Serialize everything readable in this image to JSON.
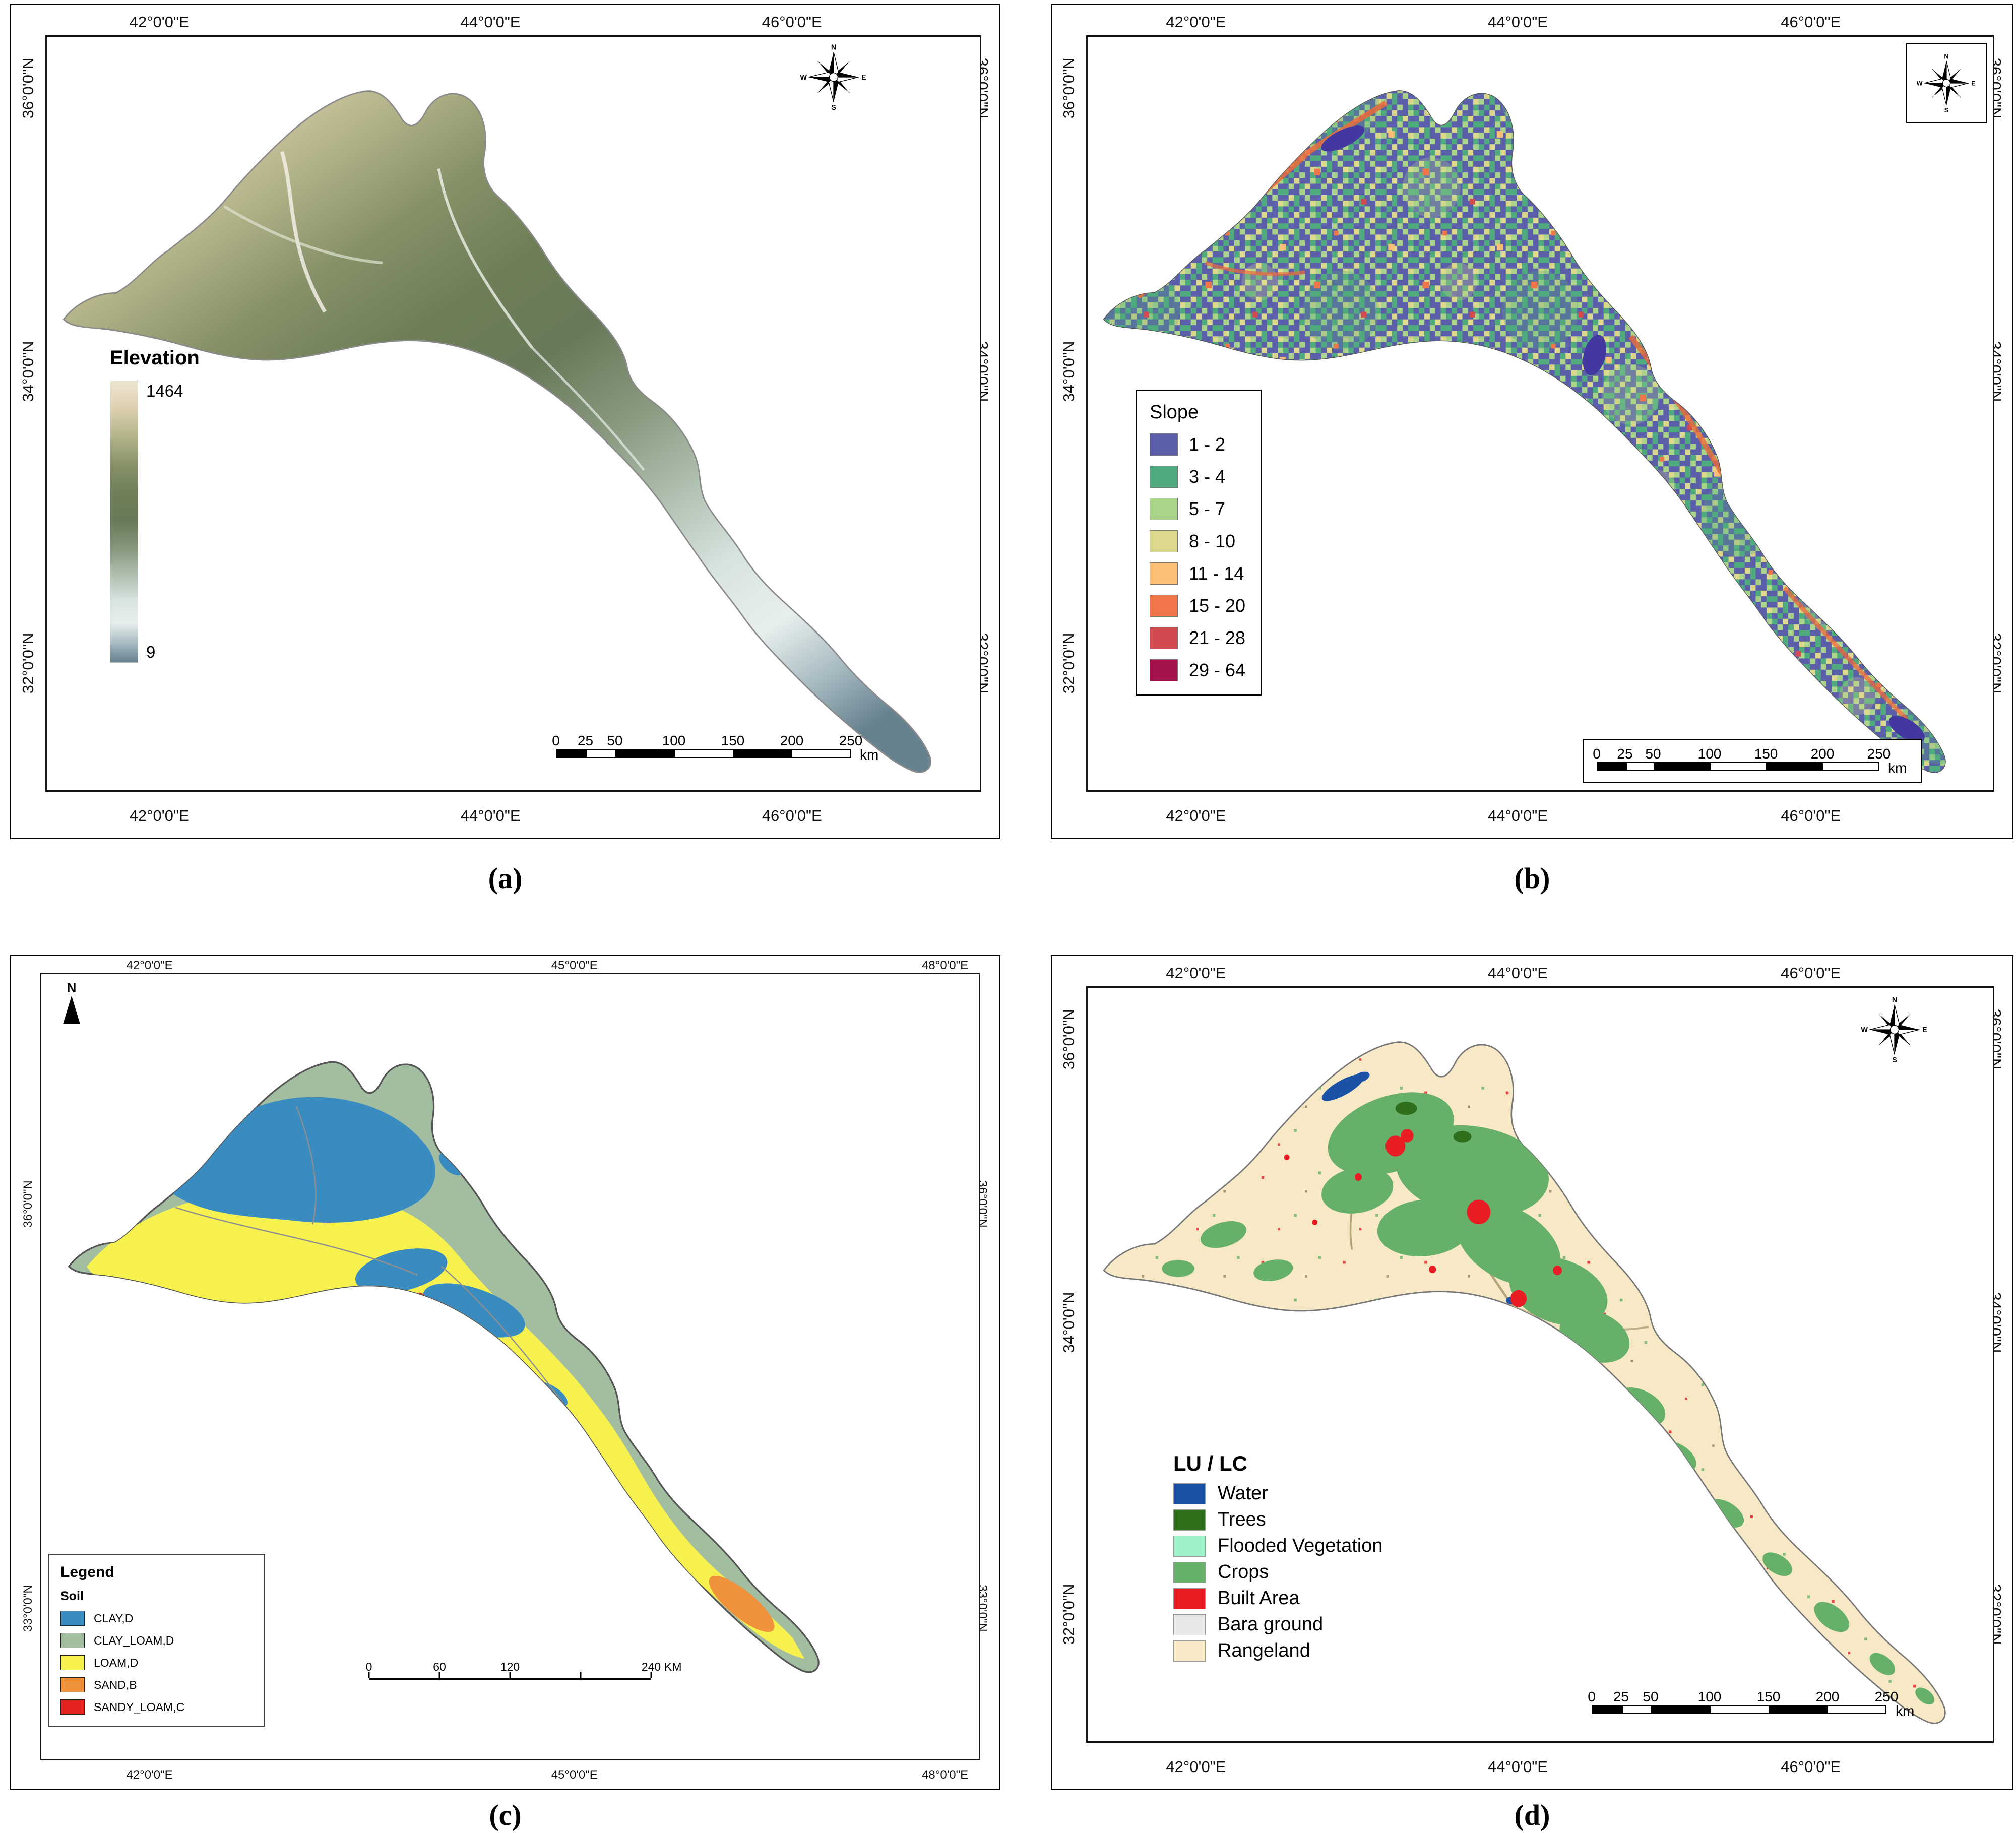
{
  "compass": {
    "n": "N",
    "e": "E",
    "s": "S",
    "w": "W"
  },
  "panels": [
    {
      "id": "a",
      "caption": "(a)",
      "coords_top": [
        "42°0'0\"E",
        "44°0'0\"E",
        "46°0'0\"E"
      ],
      "coords_bottom": [
        "42°0'0\"E",
        "44°0'0\"E",
        "46°0'0\"E"
      ],
      "coords_left": [
        "36°0'0\"N",
        "34°0'0\"N",
        "32°0'0\"N"
      ],
      "coords_right": [
        "36°0'0\"N",
        "34°0'0\"N",
        "32°0'0\"N"
      ],
      "legend": {
        "title": "Elevation",
        "max": "1464",
        "min": "9"
      },
      "scalebar": {
        "labels": [
          "0",
          "25",
          "50",
          "100",
          "150",
          "200",
          "250"
        ],
        "unit": "km"
      }
    },
    {
      "id": "b",
      "caption": "(b)",
      "coords_top": [
        "42°0'0\"E",
        "44°0'0\"E",
        "46°0'0\"E"
      ],
      "coords_bottom": [
        "42°0'0\"E",
        "44°0'0\"E",
        "46°0'0\"E"
      ],
      "coords_left": [
        "36°0'0\"N",
        "34°0'0\"N",
        "32°0'0\"N"
      ],
      "coords_right": [
        "36°0'0\"N",
        "34°0'0\"N",
        "32°0'0\"N"
      ],
      "legend": {
        "title": "Slope",
        "classes": [
          {
            "label": "1 - 2",
            "color": "#5b5fa9"
          },
          {
            "label": "3 - 4",
            "color": "#4fab7e"
          },
          {
            "label": "5 - 7",
            "color": "#a9d489"
          },
          {
            "label": "8 - 10",
            "color": "#dcd98d"
          },
          {
            "label": "11 - 14",
            "color": "#fbbf77"
          },
          {
            "label": "15 - 20",
            "color": "#f0764a"
          },
          {
            "label": "21 - 28",
            "color": "#d04a50"
          },
          {
            "label": "29 - 64",
            "color": "#a3124d"
          }
        ]
      },
      "scalebar": {
        "labels": [
          "0",
          "25",
          "50",
          "100",
          "150",
          "200",
          "250"
        ],
        "unit": "km"
      }
    },
    {
      "id": "c",
      "caption": "(c)",
      "north_label": "N",
      "coords_top": [
        "42°0'0\"E",
        "45°0'0\"E",
        "48°0'0\"E"
      ],
      "coords_bottom": [
        "42°0'0\"E",
        "45°0'0\"E",
        "48°0'0\"E"
      ],
      "coords_left": [
        "36°0'0\"N",
        "33°0'0\"N"
      ],
      "coords_right": [
        "36°0'0\"N",
        "33°0'0\"N"
      ],
      "legend": {
        "title": "Legend",
        "subtitle": "Soil",
        "classes": [
          {
            "label": "CLAY,D",
            "color": "#3a8cc0"
          },
          {
            "label": "CLAY_LOAM,D",
            "color": "#a3bda1"
          },
          {
            "label": "LOAM,D",
            "color": "#f6f14e"
          },
          {
            "label": "SAND,B",
            "color": "#f0913c"
          },
          {
            "label": "SANDY_LOAM,C",
            "color": "#e52421"
          }
        ]
      },
      "scalebar": {
        "labels": [
          "0",
          "60",
          "120",
          "240"
        ],
        "unit": "KM"
      }
    },
    {
      "id": "d",
      "caption": "(d)",
      "coords_top": [
        "42°0'0\"E",
        "44°0'0\"E",
        "46°0'0\"E"
      ],
      "coords_bottom": [
        "42°0'0\"E",
        "44°0'0\"E",
        "46°0'0\"E"
      ],
      "coords_left": [
        "36°0'0\"N",
        "34°0'0\"N",
        "32°0'0\"N"
      ],
      "coords_right": [
        "36°0'0\"N",
        "34°0'0\"N",
        "32°0'0\"N"
      ],
      "legend": {
        "title": "LU / LC",
        "classes": [
          {
            "label": "Water",
            "color": "#1b52a5"
          },
          {
            "label": "Trees",
            "color": "#2f6f1c"
          },
          {
            "label": "Flooded Vegetation",
            "color": "#9ff2c7"
          },
          {
            "label": "Crops",
            "color": "#66b06a"
          },
          {
            "label": "Built Area",
            "color": "#ea1c24"
          },
          {
            "label": "Bara ground",
            "color": "#e8e8e6"
          },
          {
            "label": "Rangeland",
            "color": "#f7e8c6"
          }
        ]
      },
      "scalebar": {
        "labels": [
          "0",
          "25",
          "50",
          "100",
          "150",
          "200",
          "250"
        ],
        "unit": "km"
      }
    }
  ]
}
